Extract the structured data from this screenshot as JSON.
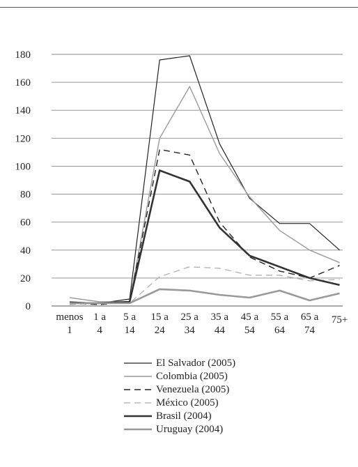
{
  "chart_data": {
    "type": "line",
    "title": "",
    "xlabel": "",
    "ylabel": "",
    "ylim": [
      0,
      180
    ],
    "yticks": [
      0,
      20,
      40,
      60,
      80,
      100,
      120,
      140,
      160,
      180
    ],
    "grid": true,
    "legend_position": "bottom",
    "categories": [
      [
        "menos",
        "1"
      ],
      [
        "1 a",
        "4"
      ],
      [
        "5 a",
        "14"
      ],
      [
        "15 a",
        "24"
      ],
      [
        "25 a",
        "34"
      ],
      [
        "35 a",
        "44"
      ],
      [
        "45 a",
        "54"
      ],
      [
        "55 a",
        "64"
      ],
      [
        "65 a",
        "74"
      ],
      [
        "75+",
        ""
      ]
    ],
    "series": [
      {
        "name": "El Salvador (2005)",
        "color": "#222222",
        "width": 1.2,
        "dash": "",
        "values": [
          3,
          2,
          5,
          176,
          179,
          116,
          77,
          59,
          59,
          40
        ]
      },
      {
        "name": "Colombia (2005)",
        "color": "#999999",
        "width": 1.4,
        "dash": "",
        "values": [
          6,
          3,
          3,
          120,
          157,
          109,
          78,
          54,
          40,
          31
        ]
      },
      {
        "name": "Venezuela (2005)",
        "color": "#222222",
        "width": 1.4,
        "dash": "9,6",
        "values": [
          2,
          1,
          3,
          112,
          108,
          60,
          35,
          25,
          20,
          29
        ]
      },
      {
        "name": "México (2005)",
        "color": "#aaaaaa",
        "width": 1.2,
        "dash": "9,6",
        "values": [
          1,
          2,
          2,
          21,
          28,
          27,
          22,
          22,
          18,
          19
        ]
      },
      {
        "name": "Brasil (2004)",
        "color": "#333333",
        "width": 2.6,
        "dash": "",
        "values": [
          2,
          2,
          3,
          97,
          89,
          56,
          36,
          28,
          20,
          15
        ]
      },
      {
        "name": "Uruguay (2004)",
        "color": "#999999",
        "width": 2.6,
        "dash": "",
        "values": [
          2,
          2,
          2,
          12,
          11,
          8,
          6,
          11,
          4,
          9
        ]
      }
    ]
  }
}
